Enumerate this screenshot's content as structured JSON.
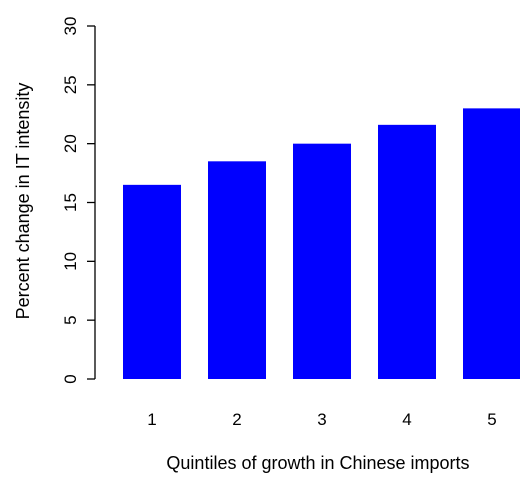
{
  "chart_data": {
    "type": "bar",
    "title": "",
    "xlabel": "Quintiles of growth in Chinese imports",
    "ylabel": "Percent change in IT intensity",
    "categories": [
      "1",
      "2",
      "3",
      "4",
      "5"
    ],
    "values": [
      16.5,
      18.5,
      20.0,
      21.6,
      23.0
    ],
    "ylim": [
      0,
      30
    ],
    "yticks": [
      "0",
      "5",
      "10",
      "15",
      "20",
      "25",
      "30"
    ],
    "bar_color": "#0000ff",
    "grid": false,
    "legend": "none"
  }
}
